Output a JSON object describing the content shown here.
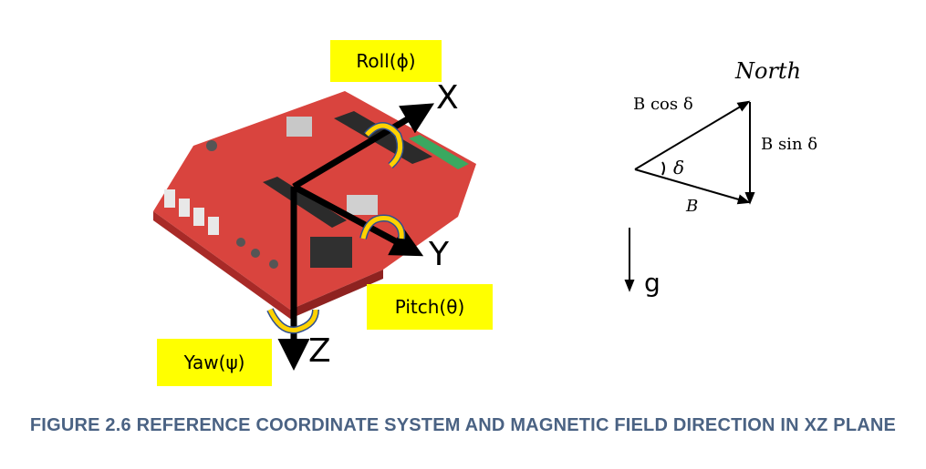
{
  "board_labels": {
    "roll": "Roll(ϕ)",
    "pitch": "Pitch(θ)",
    "yaw": "Yaw(ψ)"
  },
  "axes": {
    "x": "X",
    "y": "Y",
    "z": "Z"
  },
  "vector_diagram": {
    "north": "North",
    "b_cos": "B cos δ",
    "b_sin": "B sin δ",
    "b": "B",
    "delta": "δ"
  },
  "gravity_label": "g",
  "caption": "FIGURE 2.6 REFERENCE COORDINATE SYSTEM AND MAGNETIC FIELD DIRECTION IN XZ PLANE",
  "colors": {
    "board": "#d9443e",
    "label_bg": "#ffff00",
    "rotation_arrow": "#ffd200",
    "rotation_outline": "#2f4f8f",
    "caption": "#4a6283"
  }
}
